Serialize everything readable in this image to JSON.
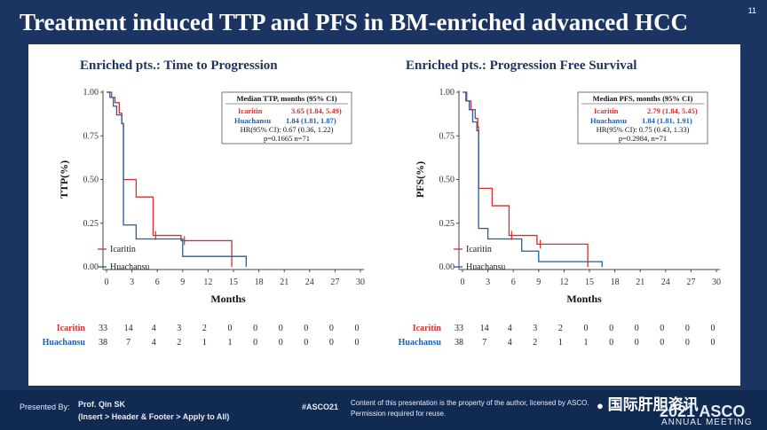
{
  "slide": {
    "title": "Treatment induced TTP and PFS in BM-enriched advanced HCC",
    "number": "11",
    "background_color": "#1c3461"
  },
  "footer": {
    "presented_by_label": "Presented By:",
    "presenter_line1": "Prof. Qin SK",
    "presenter_line2": "(Insert > Header & Footer > Apply to All)",
    "hashtag": "#ASCO21",
    "notice_line1": "Content of this presentation is the property of the author, licensed by ASCO.",
    "notice_line2": "Permission required for reuse.",
    "wechat_watermark": "国际肝胆资讯",
    "meeting_year": "2021 ASCO",
    "meeting_name": "ANNUAL MEETING"
  },
  "colors": {
    "icaritin": "#d4302e",
    "huachansu": "#1f5fa6",
    "axis": "#444444",
    "title": "#1c3461"
  },
  "chart_data": [
    {
      "type": "line",
      "title": "Enriched pts.: Time to Progression",
      "xlabel": "Months",
      "ylabel": "TTP(%)",
      "xlim": [
        0,
        30
      ],
      "ylim": [
        0,
        1
      ],
      "xticks": [
        "0",
        "3",
        "6",
        "9",
        "12",
        "15",
        "18",
        "21",
        "24",
        "27",
        "30"
      ],
      "yticks": [
        "0.00",
        "0.25",
        "0.50",
        "0.75",
        "1.00"
      ],
      "legend": {
        "title": "Median TTP, months (95% CI)",
        "line1_name": "Icaritin",
        "line1_value": "3.65 (1.84, 5.49)",
        "line2_name": "Huachansu",
        "line2_value": "1.84 (1.81, 1.87)",
        "hr": "HR(95% CI): 0.67 (0.36, 1.22)",
        "p": "p=0.1665 n=71"
      },
      "series": [
        {
          "name": "Icaritin",
          "color": "#d4302e",
          "x": [
            0,
            0.6,
            1.0,
            1.5,
            1.8,
            2.0,
            3.5,
            5.5,
            8.8,
            14.8,
            14.8
          ],
          "y": [
            1.0,
            0.97,
            0.94,
            0.88,
            0.82,
            0.5,
            0.4,
            0.18,
            0.15,
            0.15,
            0.0
          ],
          "censor": [
            [
              5.8,
              0.18
            ],
            [
              9.2,
              0.15
            ]
          ]
        },
        {
          "name": "Huachansu",
          "color": "#1f5fa6",
          "x": [
            0,
            0.4,
            0.8,
            1.2,
            1.8,
            2.0,
            3.5,
            6.0,
            9.0,
            16.5,
            16.5
          ],
          "y": [
            1.0,
            0.97,
            0.92,
            0.87,
            0.82,
            0.24,
            0.16,
            0.16,
            0.06,
            0.06,
            0.0
          ],
          "censor": []
        }
      ],
      "risk_table": {
        "labels": [
          "Icaritin",
          "Huachansu"
        ],
        "rows": [
          [
            "33",
            "14",
            "4",
            "3",
            "2",
            "0",
            "0",
            "0",
            "0",
            "0",
            "0"
          ],
          [
            "38",
            "7",
            "4",
            "2",
            "1",
            "1",
            "0",
            "0",
            "0",
            "0",
            "0"
          ]
        ]
      }
    },
    {
      "type": "line",
      "title": "Enriched pts.: Progression Free Survival",
      "xlabel": "Months",
      "ylabel": "PFS(%)",
      "xlim": [
        0,
        30
      ],
      "ylim": [
        0,
        1
      ],
      "xticks": [
        "0",
        "3",
        "6",
        "9",
        "12",
        "15",
        "18",
        "21",
        "24",
        "27",
        "30"
      ],
      "yticks": [
        "0.00",
        "0.25",
        "0.50",
        "0.75",
        "1.00"
      ],
      "legend": {
        "title": "Median PFS, months (95% CI)",
        "line1_name": "Icaritin",
        "line1_value": "2.79 (1.84, 5.45)",
        "line2_name": "Huachansu",
        "line2_value": "1.84 (1.81, 1.91)",
        "hr": "HR(95% CI): 0.75 (0.43, 1.33)",
        "p": "p=0.2984, n=71"
      },
      "series": [
        {
          "name": "Icaritin",
          "color": "#d4302e",
          "x": [
            0,
            0.5,
            1.0,
            1.5,
            1.8,
            1.9,
            3.5,
            5.5,
            8.8,
            14.8,
            14.8
          ],
          "y": [
            1.0,
            0.95,
            0.9,
            0.85,
            0.8,
            0.45,
            0.35,
            0.18,
            0.13,
            0.13,
            0.0
          ],
          "censor": [
            [
              5.8,
              0.18
            ],
            [
              9.2,
              0.13
            ]
          ]
        },
        {
          "name": "Huachansu",
          "color": "#1f5fa6",
          "x": [
            0,
            0.4,
            0.8,
            1.2,
            1.7,
            1.9,
            3.0,
            7.0,
            9.0,
            16.5,
            16.5
          ],
          "y": [
            1.0,
            0.95,
            0.9,
            0.83,
            0.78,
            0.22,
            0.16,
            0.09,
            0.03,
            0.03,
            0.0
          ],
          "censor": []
        }
      ],
      "risk_table": {
        "labels": [
          "Icaritin",
          "Huachansu"
        ],
        "rows": [
          [
            "33",
            "14",
            "4",
            "3",
            "2",
            "0",
            "0",
            "0",
            "0",
            "0",
            "0"
          ],
          [
            "38",
            "7",
            "4",
            "2",
            "1",
            "1",
            "0",
            "0",
            "0",
            "0",
            "0"
          ]
        ]
      }
    }
  ]
}
